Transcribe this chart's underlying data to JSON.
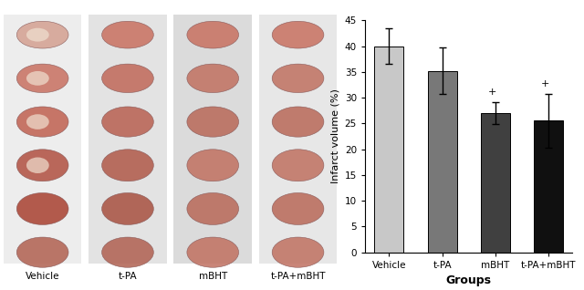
{
  "categories": [
    "Vehicle",
    "t-PA",
    "mBHT",
    "t-PA+mBHT"
  ],
  "values": [
    40.0,
    35.2,
    27.0,
    25.5
  ],
  "errors": [
    3.5,
    4.5,
    2.2,
    5.2
  ],
  "bar_colors": [
    "#c8c8c8",
    "#787878",
    "#404040",
    "#101010"
  ],
  "col_bg_colors": [
    "#e8e8e8",
    "#d0d0d0",
    "#c0c0c0",
    "#d8d8d8"
  ],
  "ylabel": "Infarct volume (%)",
  "xlabel": "Groups",
  "ylim": [
    0,
    45
  ],
  "yticks": [
    0,
    5,
    10,
    15,
    20,
    25,
    30,
    35,
    40,
    45
  ],
  "significance": [
    false,
    false,
    true,
    true
  ],
  "sig_symbol": "+",
  "background_color": "#ffffff",
  "bar_width": 0.55,
  "xlabel_fontsize": 9,
  "ylabel_fontsize": 8,
  "tick_fontsize": 7.5,
  "sig_fontsize": 8,
  "label_fontsize": 7.5
}
